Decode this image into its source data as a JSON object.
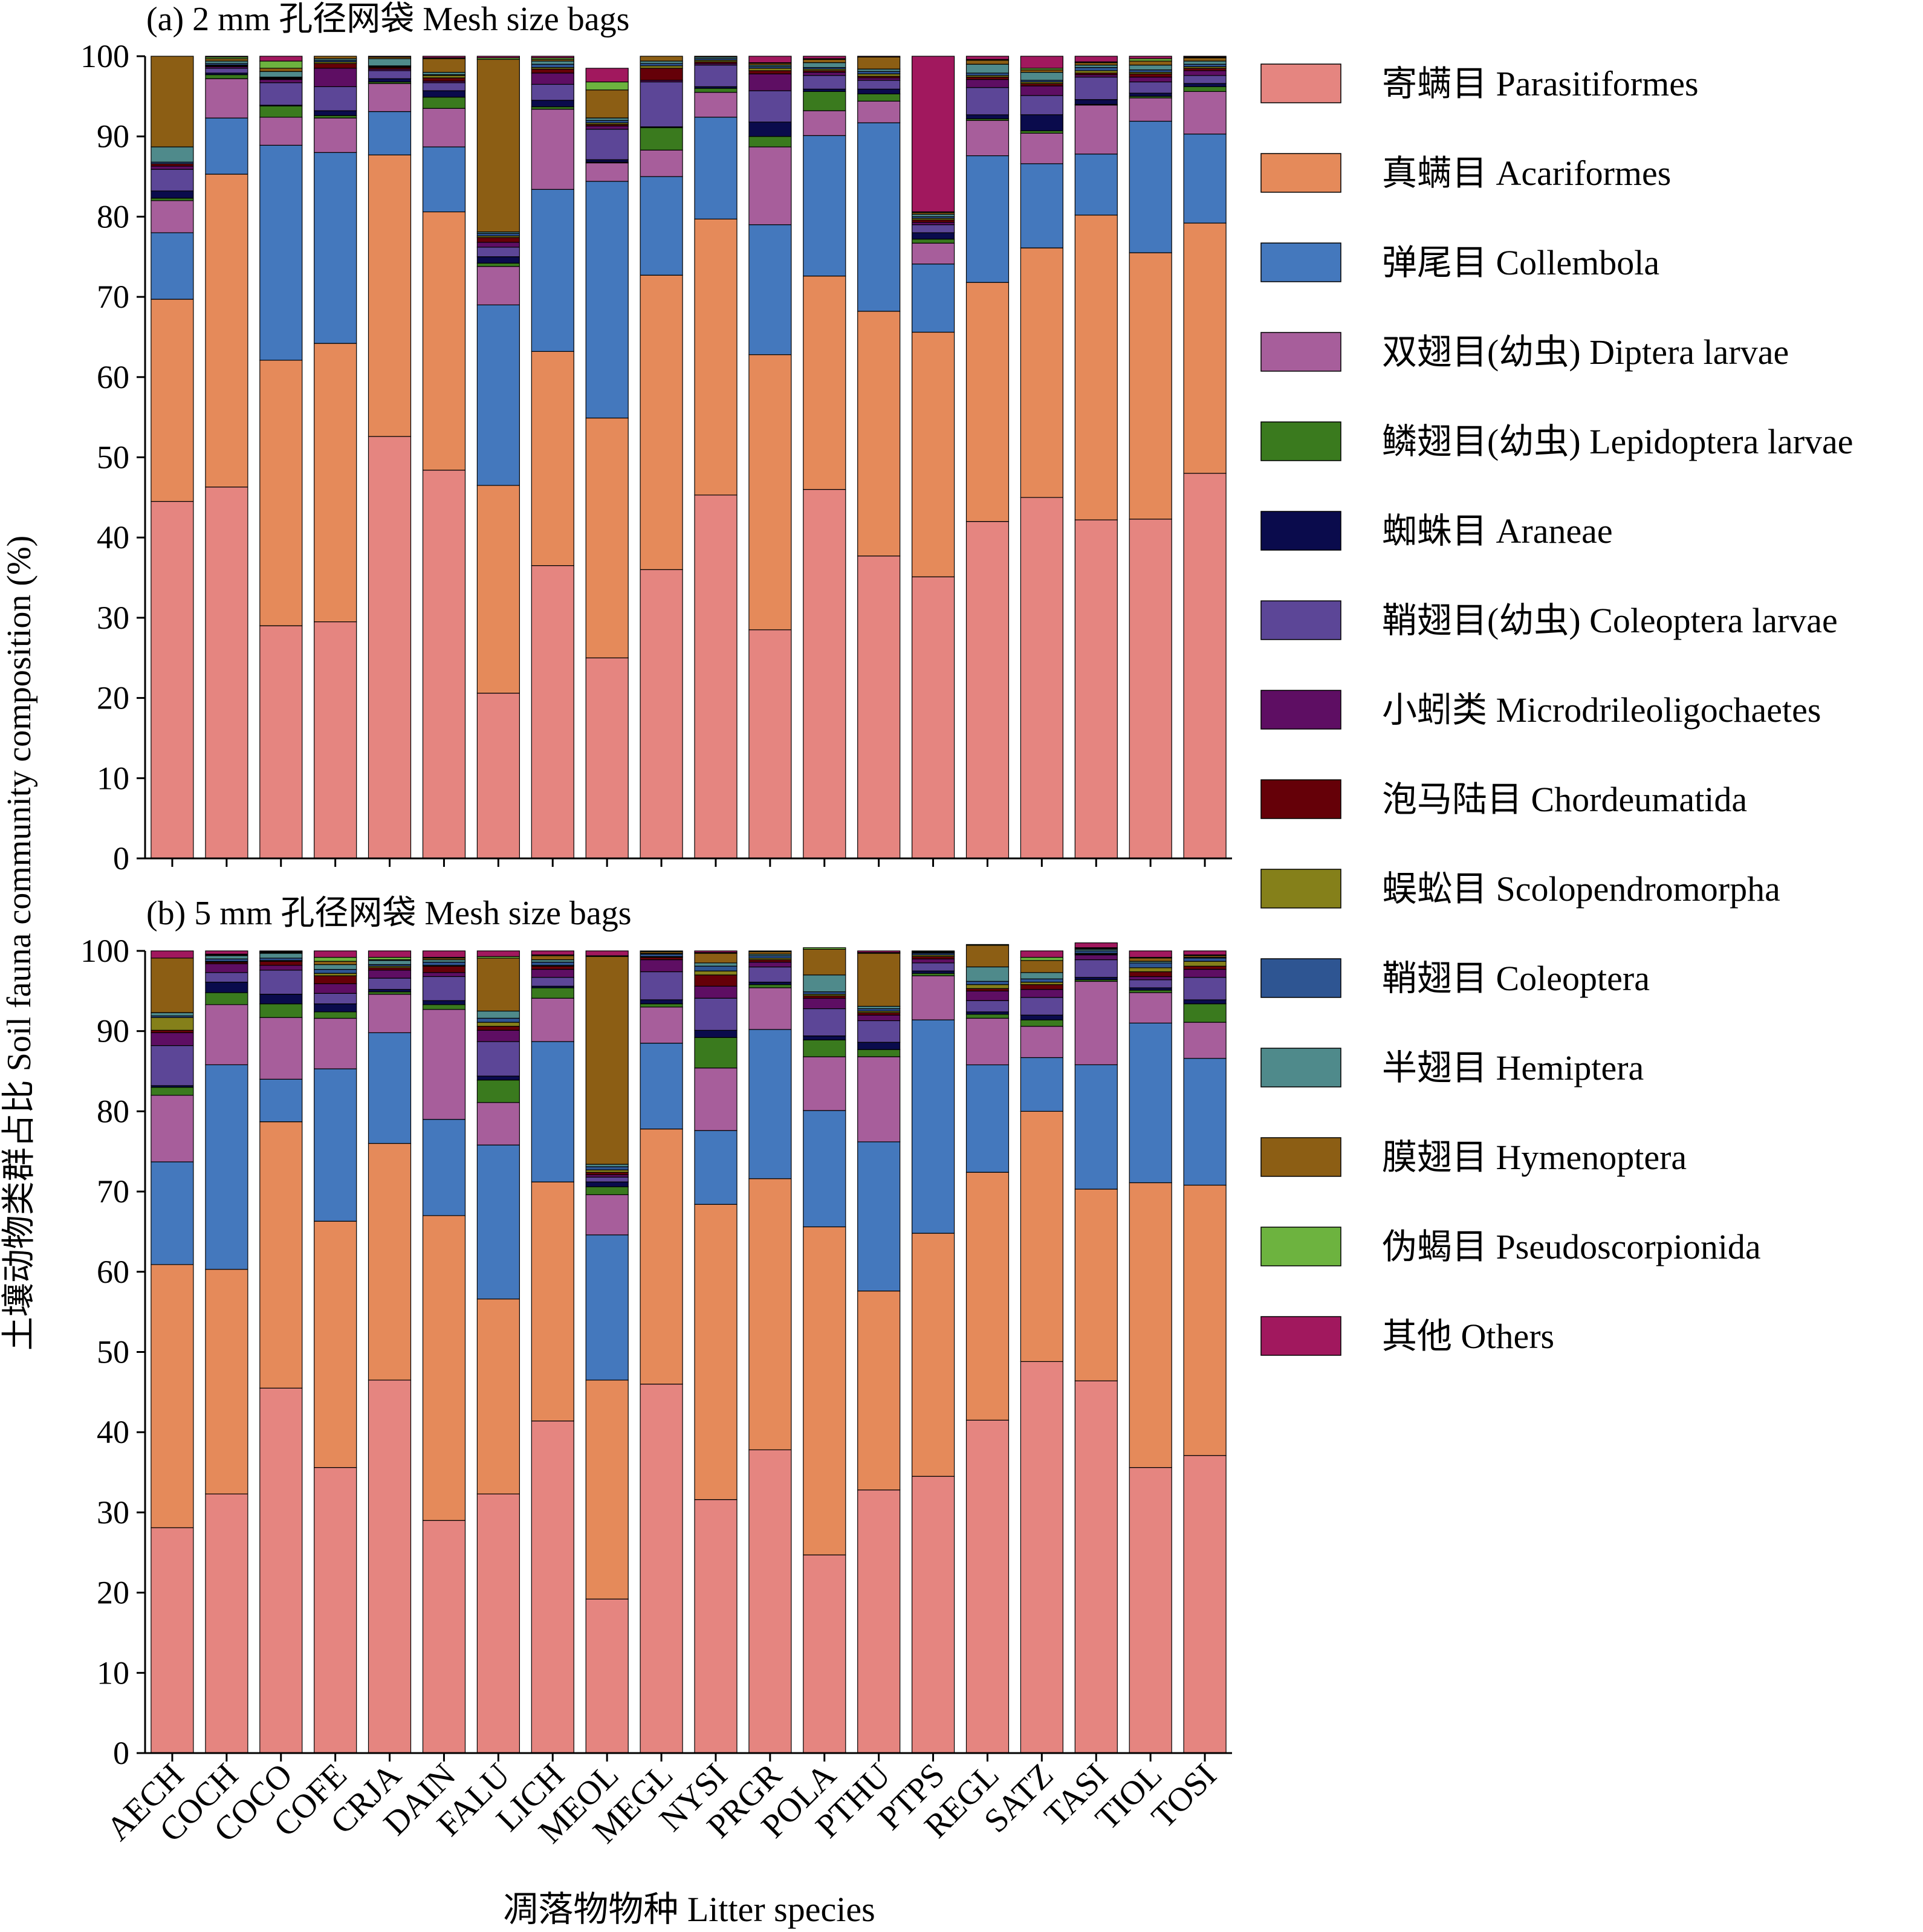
{
  "chart_data": {
    "type": "bar",
    "stacked": true,
    "ylabel": "土壤动物类群占比 Soil fauna community composition (%)",
    "xlabel": "凋落物物种 Litter species",
    "ylim": [
      0,
      100
    ],
    "yticks": [
      0,
      10,
      20,
      30,
      40,
      50,
      60,
      70,
      80,
      90,
      100
    ],
    "categories": [
      "AECH",
      "COCH",
      "COCO",
      "COFE",
      "CRJA",
      "DAIN",
      "FALU",
      "LICH",
      "MEOL",
      "MEGL",
      "NYSI",
      "PRGR",
      "POLA",
      "PTHU",
      "PTPS",
      "REGL",
      "SATZ",
      "TASI",
      "TIOL",
      "TOSI"
    ],
    "legend": {
      "position": "right",
      "entries": [
        {
          "name": "寄螨目 Parasitiformes",
          "color": "#E58580"
        },
        {
          "name": "真螨目 Acariformes",
          "color": "#E58A5A"
        },
        {
          "name": "弹尾目 Collembola",
          "color": "#4478BD"
        },
        {
          "name": "双翅目(幼虫) Diptera larvae",
          "color": "#A75E9B"
        },
        {
          "name": "鳞翅目(幼虫) Lepidoptera larvae",
          "color": "#3A7A1E"
        },
        {
          "name": "蜘蛛目 Araneae",
          "color": "#0A0B4C"
        },
        {
          "name": "鞘翅目(幼虫) Coleoptera larvae",
          "color": "#5C4697"
        },
        {
          "name": "小蚓类 Microdrileoligochaetes",
          "color": "#5E0E63"
        },
        {
          "name": "泡马陆目 Chordeumatida",
          "color": "#650008"
        },
        {
          "name": "蜈蚣目 Scolopendromorpha",
          "color": "#85801A"
        },
        {
          "name": "鞘翅目 Coleoptera",
          "color": "#2E5592"
        },
        {
          "name": "半翅目 Hemiptera",
          "color": "#4F8A8B"
        },
        {
          "name": "膜翅目 Hymenoptera",
          "color": "#8C5E14"
        },
        {
          "name": "伪蝎目 Pseudoscorpionida",
          "color": "#6DB33F"
        },
        {
          "name": "其他 Others",
          "color": "#A1185E"
        }
      ]
    },
    "panels": [
      {
        "title": "(a) 2 mm 孔径网袋 Mesh size bags",
        "series_values": [
          [
            44.5,
            46.3,
            29.0,
            29.5,
            52.6,
            48.4,
            20.6,
            36.5,
            25.0,
            36.0,
            45.3,
            28.5,
            46.0,
            37.7,
            35.1,
            42.0,
            45.0,
            42.2,
            42.3,
            48.0
          ],
          [
            25.2,
            39.0,
            33.1,
            34.7,
            35.1,
            32.2,
            25.9,
            26.7,
            29.9,
            36.7,
            34.4,
            34.3,
            26.6,
            30.5,
            30.5,
            29.8,
            31.1,
            38.0,
            33.2,
            31.2
          ],
          [
            8.3,
            7.0,
            26.8,
            23.8,
            5.4,
            8.1,
            22.5,
            20.2,
            29.5,
            12.3,
            12.7,
            16.2,
            17.5,
            23.5,
            8.5,
            15.8,
            10.5,
            7.6,
            16.4,
            11.1
          ],
          [
            4.0,
            4.9,
            3.5,
            4.3,
            3.5,
            4.8,
            4.8,
            10.0,
            2.3,
            3.3,
            3.1,
            9.7,
            3.1,
            2.7,
            2.6,
            4.4,
            3.8,
            6.1,
            2.9,
            5.3
          ],
          [
            0.3,
            0.5,
            1.4,
            0.3,
            0.2,
            1.4,
            0.4,
            0.3,
            0.1,
            2.8,
            0.5,
            1.3,
            2.4,
            0.9,
            0.5,
            0.2,
            0.3,
            0.1,
            0.2,
            0.6
          ],
          [
            0.9,
            0.2,
            0.1,
            0.6,
            0.4,
            0.8,
            0.8,
            0.8,
            0.3,
            0.1,
            0.2,
            1.8,
            0.3,
            0.6,
            0.8,
            0.5,
            2.0,
            0.6,
            0.4,
            0.4
          ],
          [
            2.7,
            0.6,
            2.8,
            3.0,
            1.0,
            1.0,
            1.2,
            2.0,
            3.8,
            5.6,
            2.7,
            3.9,
            1.7,
            1.1,
            1.0,
            3.4,
            2.4,
            2.8,
            1.4,
            1.0
          ],
          [
            0.4,
            0.2,
            0.4,
            2.3,
            0.2,
            0.2,
            0.6,
            1.4,
            0.4,
            0.2,
            0.2,
            2.1,
            0.4,
            0.3,
            0.3,
            1.0,
            1.2,
            0.3,
            0.6,
            0.6
          ],
          [
            0.3,
            0.1,
            0.1,
            0.6,
            0.2,
            0.4,
            0.6,
            0.5,
            0.2,
            1.5,
            0.2,
            0.4,
            0.2,
            0.2,
            0.3,
            0.3,
            0.3,
            0.2,
            0.4,
            0.3
          ],
          [
            0.0,
            0.1,
            0.1,
            0.2,
            0.1,
            0.3,
            0.2,
            0.2,
            0.2,
            0.3,
            0.2,
            0.3,
            0.2,
            0.3,
            0.2,
            0.2,
            0.2,
            0.3,
            0.2,
            0.2
          ],
          [
            0.2,
            0.2,
            0.1,
            0.2,
            0.1,
            0.1,
            0.3,
            0.4,
            0.3,
            0.3,
            0.2,
            0.2,
            0.2,
            0.3,
            0.2,
            0.3,
            0.2,
            0.4,
            0.3,
            0.3
          ],
          [
            1.9,
            0.3,
            0.7,
            0.2,
            0.9,
            0.3,
            0.2,
            0.4,
            0.3,
            0.3,
            0.2,
            0.2,
            0.6,
            0.3,
            0.3,
            1.1,
            1.0,
            0.3,
            0.6,
            0.4
          ],
          [
            11.3,
            0.3,
            0.4,
            0.3,
            0.2,
            1.7,
            21.5,
            0.2,
            3.5,
            0.6,
            0.1,
            0.2,
            0.4,
            1.5,
            0.2,
            0.5,
            0.3,
            0.3,
            0.5,
            0.4
          ],
          [
            0.0,
            0.2,
            0.9,
            0.0,
            0.0,
            0.1,
            0.2,
            0.2,
            1.0,
            0.0,
            0.0,
            0.1,
            0.1,
            0.0,
            0.1,
            0.1,
            0.2,
            0.1,
            0.3,
            0.1
          ],
          [
            0.0,
            0.1,
            0.6,
            0.0,
            0.1,
            0.2,
            0.2,
            0.2,
            1.7,
            0.0,
            0.0,
            0.8,
            0.3,
            0.1,
            19.4,
            0.4,
            1.5,
            0.7,
            0.3,
            0.1
          ]
        ]
      },
      {
        "title": "(b) 5 mm 孔径网袋 Mesh size bags",
        "series_values": [
          [
            28.1,
            32.3,
            45.5,
            35.6,
            46.5,
            29.0,
            32.3,
            41.4,
            19.2,
            46.0,
            31.6,
            37.8,
            24.7,
            32.8,
            34.5,
            41.5,
            48.8,
            46.4,
            35.6,
            37.1
          ],
          [
            32.8,
            28.0,
            33.2,
            30.7,
            29.5,
            38.0,
            24.3,
            29.8,
            27.3,
            31.8,
            36.8,
            33.8,
            40.9,
            24.8,
            30.3,
            30.9,
            31.2,
            23.9,
            35.5,
            33.7
          ],
          [
            12.8,
            25.5,
            5.3,
            19.0,
            13.8,
            12.0,
            19.2,
            17.5,
            18.1,
            10.7,
            9.2,
            18.6,
            14.5,
            18.6,
            26.6,
            13.4,
            6.7,
            15.5,
            19.9,
            15.8
          ],
          [
            8.3,
            7.5,
            7.7,
            6.3,
            4.8,
            13.7,
            5.3,
            5.4,
            5.0,
            4.5,
            7.8,
            5.2,
            6.7,
            10.6,
            5.5,
            5.8,
            3.9,
            10.4,
            3.8,
            4.5
          ],
          [
            1.0,
            1.5,
            1.7,
            0.8,
            0.3,
            0.6,
            2.8,
            1.3,
            1.0,
            0.4,
            3.8,
            0.4,
            2.1,
            0.9,
            0.3,
            0.5,
            0.8,
            0.2,
            0.3,
            2.3
          ],
          [
            0.2,
            1.3,
            1.2,
            1.0,
            0.3,
            0.5,
            0.5,
            0.2,
            0.6,
            0.5,
            0.9,
            0.3,
            0.5,
            0.9,
            0.3,
            0.3,
            0.6,
            0.3,
            0.3,
            0.5
          ],
          [
            5.0,
            1.2,
            3.0,
            1.3,
            1.4,
            3.0,
            4.3,
            1.1,
            0.6,
            3.5,
            4.0,
            1.9,
            3.4,
            2.7,
            1.0,
            1.4,
            2.2,
            2.2,
            1.0,
            2.8
          ],
          [
            1.6,
            1.1,
            0.6,
            1.2,
            1.0,
            0.5,
            1.4,
            1.0,
            0.3,
            1.5,
            1.5,
            0.6,
            1.3,
            0.7,
            0.5,
            1.2,
            1.0,
            0.6,
            0.4,
            1.0
          ],
          [
            0.3,
            0.2,
            0.5,
            1.0,
            0.3,
            0.8,
            0.5,
            0.4,
            0.3,
            0.3,
            1.4,
            0.3,
            0.3,
            0.3,
            0.3,
            0.3,
            0.6,
            0.1,
            0.6,
            0.4
          ],
          [
            1.6,
            0.1,
            0.1,
            0.3,
            0.2,
            0.1,
            0.5,
            0.1,
            0.3,
            0.1,
            0.5,
            0.2,
            0.2,
            0.2,
            0.2,
            0.5,
            0.3,
            0.1,
            0.5,
            0.6
          ],
          [
            0.2,
            0.3,
            0.3,
            0.5,
            0.2,
            0.4,
            0.5,
            0.4,
            0.4,
            0.3,
            0.6,
            0.3,
            0.3,
            0.3,
            0.2,
            0.4,
            0.4,
            0.3,
            0.6,
            0.4
          ],
          [
            0.4,
            0.4,
            0.6,
            0.6,
            0.5,
            0.3,
            0.9,
            0.3,
            0.3,
            0.1,
            0.4,
            0.2,
            2.1,
            0.3,
            0.1,
            1.8,
            0.8,
            0.2,
            0.2,
            0.1
          ],
          [
            6.8,
            0.1,
            0.1,
            0.4,
            0.1,
            0.2,
            6.6,
            0.5,
            25.9,
            0.2,
            1.2,
            0.3,
            3.2,
            6.6,
            0.1,
            2.7,
            1.5,
            0.1,
            0.4,
            0.2
          ],
          [
            0.0,
            0.1,
            0.1,
            0.5,
            0.3,
            0.1,
            0.2,
            0.1,
            0.1,
            0.1,
            0.1,
            0.1,
            0.2,
            0.1,
            0.1,
            0.1,
            0.4,
            0.1,
            0.1,
            0.1
          ],
          [
            0.9,
            0.4,
            0.1,
            0.8,
            0.8,
            0.8,
            0.7,
            0.5,
            0.6,
            0.0,
            0.2,
            0.0,
            0.0,
            0.2,
            0.0,
            0.0,
            0.8,
            0.6,
            0.8,
            0.5
          ]
        ]
      }
    ]
  }
}
